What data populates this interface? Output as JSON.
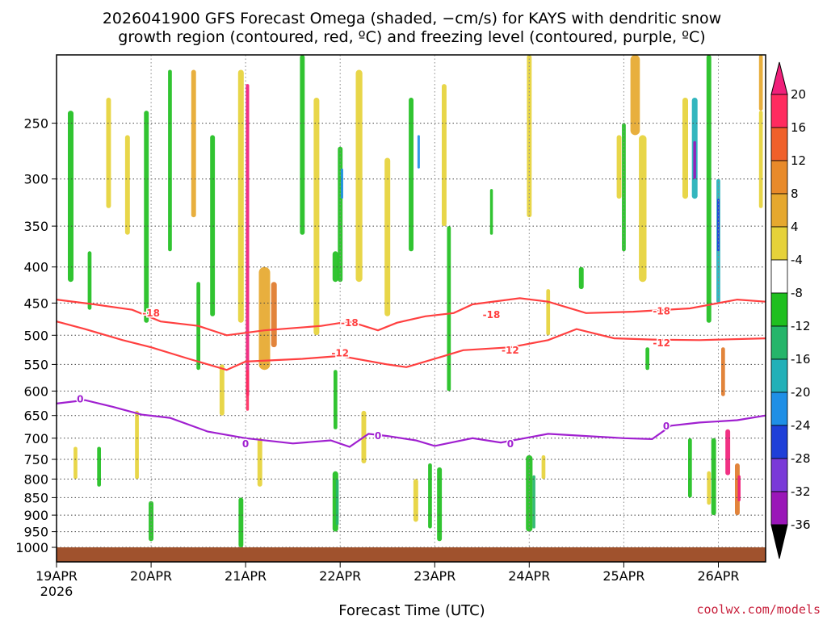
{
  "chart_data": {
    "type": "time-height cross section",
    "title_lines": [
      "2026041900 GFS Forecast Omega (shaded, −cm/s) for KAYS with dendritic snow",
      "growth region (contoured, red, ºC) and freezing level (contoured, purple, ºC)"
    ],
    "xlabel": "Forecast Time (UTC)",
    "credit": "coolwx.com/models",
    "x_ticks": [
      "19APR",
      "20APR",
      "21APR",
      "22APR",
      "23APR",
      "24APR",
      "25APR",
      "26APR"
    ],
    "x_start_year": "2026",
    "x_range_days": [
      0,
      7.5
    ],
    "y_ticks": [
      "250",
      "300",
      "350",
      "400",
      "450",
      "500",
      "550",
      "600",
      "650",
      "700",
      "750",
      "800",
      "850",
      "900",
      "950",
      "1000"
    ],
    "y_range_hpa": [
      200,
      1000
    ],
    "colorbar_labels": [
      "20",
      "16",
      "12",
      "8",
      "4",
      "-4",
      "-8",
      "-12",
      "-16",
      "-20",
      "-24",
      "-28",
      "-32",
      "-36"
    ],
    "colorbar_colors": [
      "#ff2b5f",
      "#f0602a",
      "#e88a2a",
      "#e6a82e",
      "#e6d23a",
      "#ffffff",
      "#1fbf1f",
      "#25b56a",
      "#22b0b8",
      "#1f8fe6",
      "#1f3fd8",
      "#7a3ad8",
      "#9a16b8",
      "#a8a8a8"
    ],
    "colorbar_top_color": "#f0207a",
    "colorbar_bottom_color": "#000000",
    "shade_color_scale": {
      "yellow": "#e6d23a",
      "orange": "#e6a82e",
      "deep_orange": "#e07a2a",
      "red": "#ff2b5f",
      "green": "#1fbf1f",
      "teal": "#25b56a",
      "cyan": "#22b0b8",
      "blue": "#1f8fe6",
      "dark_blue": "#1f3fd8",
      "purple": "#9a16b8",
      "pink": "#f0207a"
    },
    "contours": [
      {
        "name": "-18",
        "color": "#ff4040",
        "label": "-18",
        "points": [
          [
            0,
            445
          ],
          [
            0.4,
            452
          ],
          [
            0.8,
            460
          ],
          [
            1.1,
            478
          ],
          [
            1.5,
            485
          ],
          [
            1.8,
            500
          ],
          [
            2.2,
            492
          ],
          [
            2.8,
            485
          ],
          [
            3.1,
            478
          ],
          [
            3.4,
            492
          ],
          [
            3.6,
            480
          ],
          [
            3.9,
            470
          ],
          [
            4.2,
            465
          ],
          [
            4.4,
            452
          ],
          [
            4.9,
            443
          ],
          [
            5.2,
            448
          ],
          [
            5.6,
            465
          ],
          [
            6.1,
            463
          ],
          [
            6.7,
            458
          ],
          [
            7.2,
            445
          ],
          [
            7.5,
            448
          ]
        ],
        "label_at": [
          [
            1.0,
            465
          ],
          [
            3.1,
            480
          ],
          [
            4.6,
            468
          ],
          [
            6.4,
            462
          ]
        ]
      },
      {
        "name": "-12",
        "color": "#ff4040",
        "label": "-12",
        "points": [
          [
            0,
            478
          ],
          [
            0.3,
            490
          ],
          [
            0.7,
            508
          ],
          [
            1.0,
            520
          ],
          [
            1.4,
            540
          ],
          [
            1.8,
            560
          ],
          [
            2.0,
            545
          ],
          [
            2.6,
            540
          ],
          [
            3.0,
            535
          ],
          [
            3.5,
            550
          ],
          [
            3.7,
            555
          ],
          [
            4.1,
            535
          ],
          [
            4.3,
            525
          ],
          [
            4.8,
            520
          ],
          [
            5.2,
            508
          ],
          [
            5.5,
            490
          ],
          [
            5.9,
            505
          ],
          [
            6.3,
            507
          ],
          [
            6.8,
            508
          ],
          [
            7.5,
            505
          ]
        ],
        "label_at": [
          [
            3.0,
            530
          ],
          [
            4.8,
            525
          ],
          [
            6.4,
            513
          ]
        ]
      },
      {
        "name": "0",
        "color": "#a020d0",
        "label": "0",
        "points": [
          [
            0,
            625
          ],
          [
            0.3,
            618
          ],
          [
            0.6,
            632
          ],
          [
            0.9,
            648
          ],
          [
            1.2,
            655
          ],
          [
            1.6,
            685
          ],
          [
            2.0,
            700
          ],
          [
            2.5,
            712
          ],
          [
            2.9,
            705
          ],
          [
            3.1,
            720
          ],
          [
            3.3,
            690
          ],
          [
            3.5,
            695
          ],
          [
            3.8,
            705
          ],
          [
            4.0,
            718
          ],
          [
            4.4,
            700
          ],
          [
            4.7,
            710
          ],
          [
            4.9,
            702
          ],
          [
            5.2,
            690
          ],
          [
            5.6,
            695
          ],
          [
            6.0,
            700
          ],
          [
            6.3,
            702
          ],
          [
            6.5,
            672
          ],
          [
            6.8,
            665
          ],
          [
            7.2,
            660
          ],
          [
            7.5,
            650
          ]
        ],
        "label_at": [
          [
            0.25,
            616
          ],
          [
            2.0,
            713
          ],
          [
            3.4,
            695
          ],
          [
            4.8,
            713
          ],
          [
            6.45,
            673
          ]
        ]
      }
    ],
    "shaded_regions": [
      {
        "color": "green",
        "t": 0.15,
        "p0": 240,
        "p1": 420,
        "w": 0.06
      },
      {
        "color": "green",
        "t": 0.35,
        "p0": 380,
        "p1": 460,
        "w": 0.04
      },
      {
        "color": "yellow",
        "t": 0.55,
        "p0": 230,
        "p1": 330,
        "w": 0.05
      },
      {
        "color": "yellow",
        "t": 0.75,
        "p0": 260,
        "p1": 360,
        "w": 0.05
      },
      {
        "color": "green",
        "t": 0.95,
        "p0": 240,
        "p1": 480,
        "w": 0.05
      },
      {
        "color": "green",
        "t": 1.2,
        "p0": 210,
        "p1": 380,
        "w": 0.04
      },
      {
        "color": "orange",
        "t": 1.45,
        "p0": 210,
        "p1": 340,
        "w": 0.05
      },
      {
        "color": "green",
        "t": 1.65,
        "p0": 260,
        "p1": 470,
        "w": 0.05
      },
      {
        "color": "yellow",
        "t": 1.95,
        "p0": 210,
        "p1": 480,
        "w": 0.06
      },
      {
        "color": "pink",
        "t": 2.02,
        "p0": 220,
        "p1": 610,
        "w": 0.035
      },
      {
        "color": "red",
        "t": 2.02,
        "p0": 560,
        "p1": 640,
        "w": 0.03
      },
      {
        "color": "orange",
        "t": 2.2,
        "p0": 400,
        "p1": 560,
        "w": 0.12
      },
      {
        "color": "deep_orange",
        "t": 2.3,
        "p0": 420,
        "p1": 520,
        "w": 0.06
      },
      {
        "color": "green",
        "t": 2.6,
        "p0": 200,
        "p1": 360,
        "w": 0.05
      },
      {
        "color": "yellow",
        "t": 2.75,
        "p0": 230,
        "p1": 500,
        "w": 0.06
      },
      {
        "color": "green",
        "t": 3.0,
        "p0": 270,
        "p1": 420,
        "w": 0.05
      },
      {
        "color": "blue",
        "t": 3.02,
        "p0": 290,
        "p1": 320,
        "w": 0.02
      },
      {
        "color": "yellow",
        "t": 3.2,
        "p0": 210,
        "p1": 420,
        "w": 0.07
      },
      {
        "color": "yellow",
        "t": 3.5,
        "p0": 280,
        "p1": 470,
        "w": 0.06
      },
      {
        "color": "green",
        "t": 3.75,
        "p0": 230,
        "p1": 380,
        "w": 0.05
      },
      {
        "color": "blue",
        "t": 3.83,
        "p0": 260,
        "p1": 290,
        "w": 0.02
      },
      {
        "color": "yellow",
        "t": 4.1,
        "p0": 220,
        "p1": 350,
        "w": 0.05
      },
      {
        "color": "green",
        "t": 4.15,
        "p0": 350,
        "p1": 600,
        "w": 0.04
      },
      {
        "color": "green",
        "t": 4.6,
        "p0": 310,
        "p1": 360,
        "w": 0.03
      },
      {
        "color": "yellow",
        "t": 5.0,
        "p0": 200,
        "p1": 340,
        "w": 0.05
      },
      {
        "color": "yellow",
        "t": 5.2,
        "p0": 430,
        "p1": 500,
        "w": 0.04
      },
      {
        "color": "green",
        "t": 5.55,
        "p0": 400,
        "p1": 430,
        "w": 0.05
      },
      {
        "color": "yellow",
        "t": 5.95,
        "p0": 260,
        "p1": 320,
        "w": 0.05
      },
      {
        "color": "green",
        "t": 6.0,
        "p0": 250,
        "p1": 380,
        "w": 0.04
      },
      {
        "color": "orange",
        "t": 6.12,
        "p0": 200,
        "p1": 260,
        "w": 0.1
      },
      {
        "color": "yellow",
        "t": 6.2,
        "p0": 260,
        "p1": 420,
        "w": 0.08
      },
      {
        "color": "green",
        "t": 6.25,
        "p0": 520,
        "p1": 560,
        "w": 0.04
      },
      {
        "color": "yellow",
        "t": 6.65,
        "p0": 230,
        "p1": 320,
        "w": 0.06
      },
      {
        "color": "cyan",
        "t": 6.75,
        "p0": 230,
        "p1": 320,
        "w": 0.06
      },
      {
        "color": "purple",
        "t": 6.75,
        "p0": 265,
        "p1": 300,
        "w": 0.03
      },
      {
        "color": "green",
        "t": 6.9,
        "p0": 200,
        "p1": 480,
        "w": 0.05
      },
      {
        "color": "cyan",
        "t": 7.0,
        "p0": 300,
        "p1": 450,
        "w": 0.04
      },
      {
        "color": "dark_blue",
        "t": 7.0,
        "p0": 320,
        "p1": 380,
        "w": 0.02
      },
      {
        "color": "orange",
        "t": 7.45,
        "p0": 200,
        "p1": 240,
        "w": 0.04
      },
      {
        "color": "yellow",
        "t": 7.45,
        "p0": 240,
        "p1": 330,
        "w": 0.04
      },
      {
        "color": "deep_orange",
        "t": 7.05,
        "p0": 520,
        "p1": 610,
        "w": 0.04
      },
      {
        "color": "green",
        "t": 6.95,
        "p0": 700,
        "p1": 900,
        "w": 0.05
      },
      {
        "color": "pink",
        "t": 7.1,
        "p0": 680,
        "p1": 790,
        "w": 0.05
      },
      {
        "color": "deep_orange",
        "t": 7.2,
        "p0": 760,
        "p1": 900,
        "w": 0.05
      },
      {
        "color": "pink",
        "t": 7.22,
        "p0": 790,
        "p1": 860,
        "w": 0.03
      },
      {
        "color": "green",
        "t": 6.7,
        "p0": 700,
        "p1": 850,
        "w": 0.04
      },
      {
        "color": "yellow",
        "t": 6.9,
        "p0": 780,
        "p1": 870,
        "w": 0.04
      },
      {
        "color": "green",
        "t": 5.0,
        "p0": 740,
        "p1": 950,
        "w": 0.07
      },
      {
        "color": "teal",
        "t": 5.05,
        "p0": 790,
        "p1": 940,
        "w": 0.03
      },
      {
        "color": "yellow",
        "t": 5.15,
        "p0": 740,
        "p1": 800,
        "w": 0.04
      },
      {
        "color": "green",
        "t": 4.05,
        "p0": 770,
        "p1": 980,
        "w": 0.05
      },
      {
        "color": "green",
        "t": 3.95,
        "p0": 760,
        "p1": 940,
        "w": 0.04
      },
      {
        "color": "yellow",
        "t": 3.8,
        "p0": 800,
        "p1": 920,
        "w": 0.05
      },
      {
        "color": "green",
        "t": 2.95,
        "p0": 780,
        "p1": 950,
        "w": 0.06
      },
      {
        "color": "teal",
        "t": 2.97,
        "p0": 800,
        "p1": 930,
        "w": 0.03
      },
      {
        "color": "yellow",
        "t": 3.25,
        "p0": 640,
        "p1": 760,
        "w": 0.05
      },
      {
        "color": "green",
        "t": 1.95,
        "p0": 850,
        "p1": 1000,
        "w": 0.05
      },
      {
        "color": "yellow",
        "t": 2.15,
        "p0": 700,
        "p1": 820,
        "w": 0.05
      },
      {
        "color": "green",
        "t": 1.0,
        "p0": 860,
        "p1": 980,
        "w": 0.05
      },
      {
        "color": "yellow",
        "t": 0.85,
        "p0": 640,
        "p1": 800,
        "w": 0.04
      },
      {
        "color": "yellow",
        "t": 0.2,
        "p0": 720,
        "p1": 800,
        "w": 0.04
      },
      {
        "color": "green",
        "t": 0.45,
        "p0": 720,
        "p1": 820,
        "w": 0.04
      },
      {
        "color": "green",
        "t": 2.95,
        "p0": 380,
        "p1": 420,
        "w": 0.06
      },
      {
        "color": "green",
        "t": 2.95,
        "p0": 560,
        "p1": 680,
        "w": 0.04
      },
      {
        "color": "green",
        "t": 1.5,
        "p0": 420,
        "p1": 560,
        "w": 0.04
      },
      {
        "color": "yellow",
        "t": 1.75,
        "p0": 550,
        "p1": 650,
        "w": 0.05
      }
    ]
  }
}
